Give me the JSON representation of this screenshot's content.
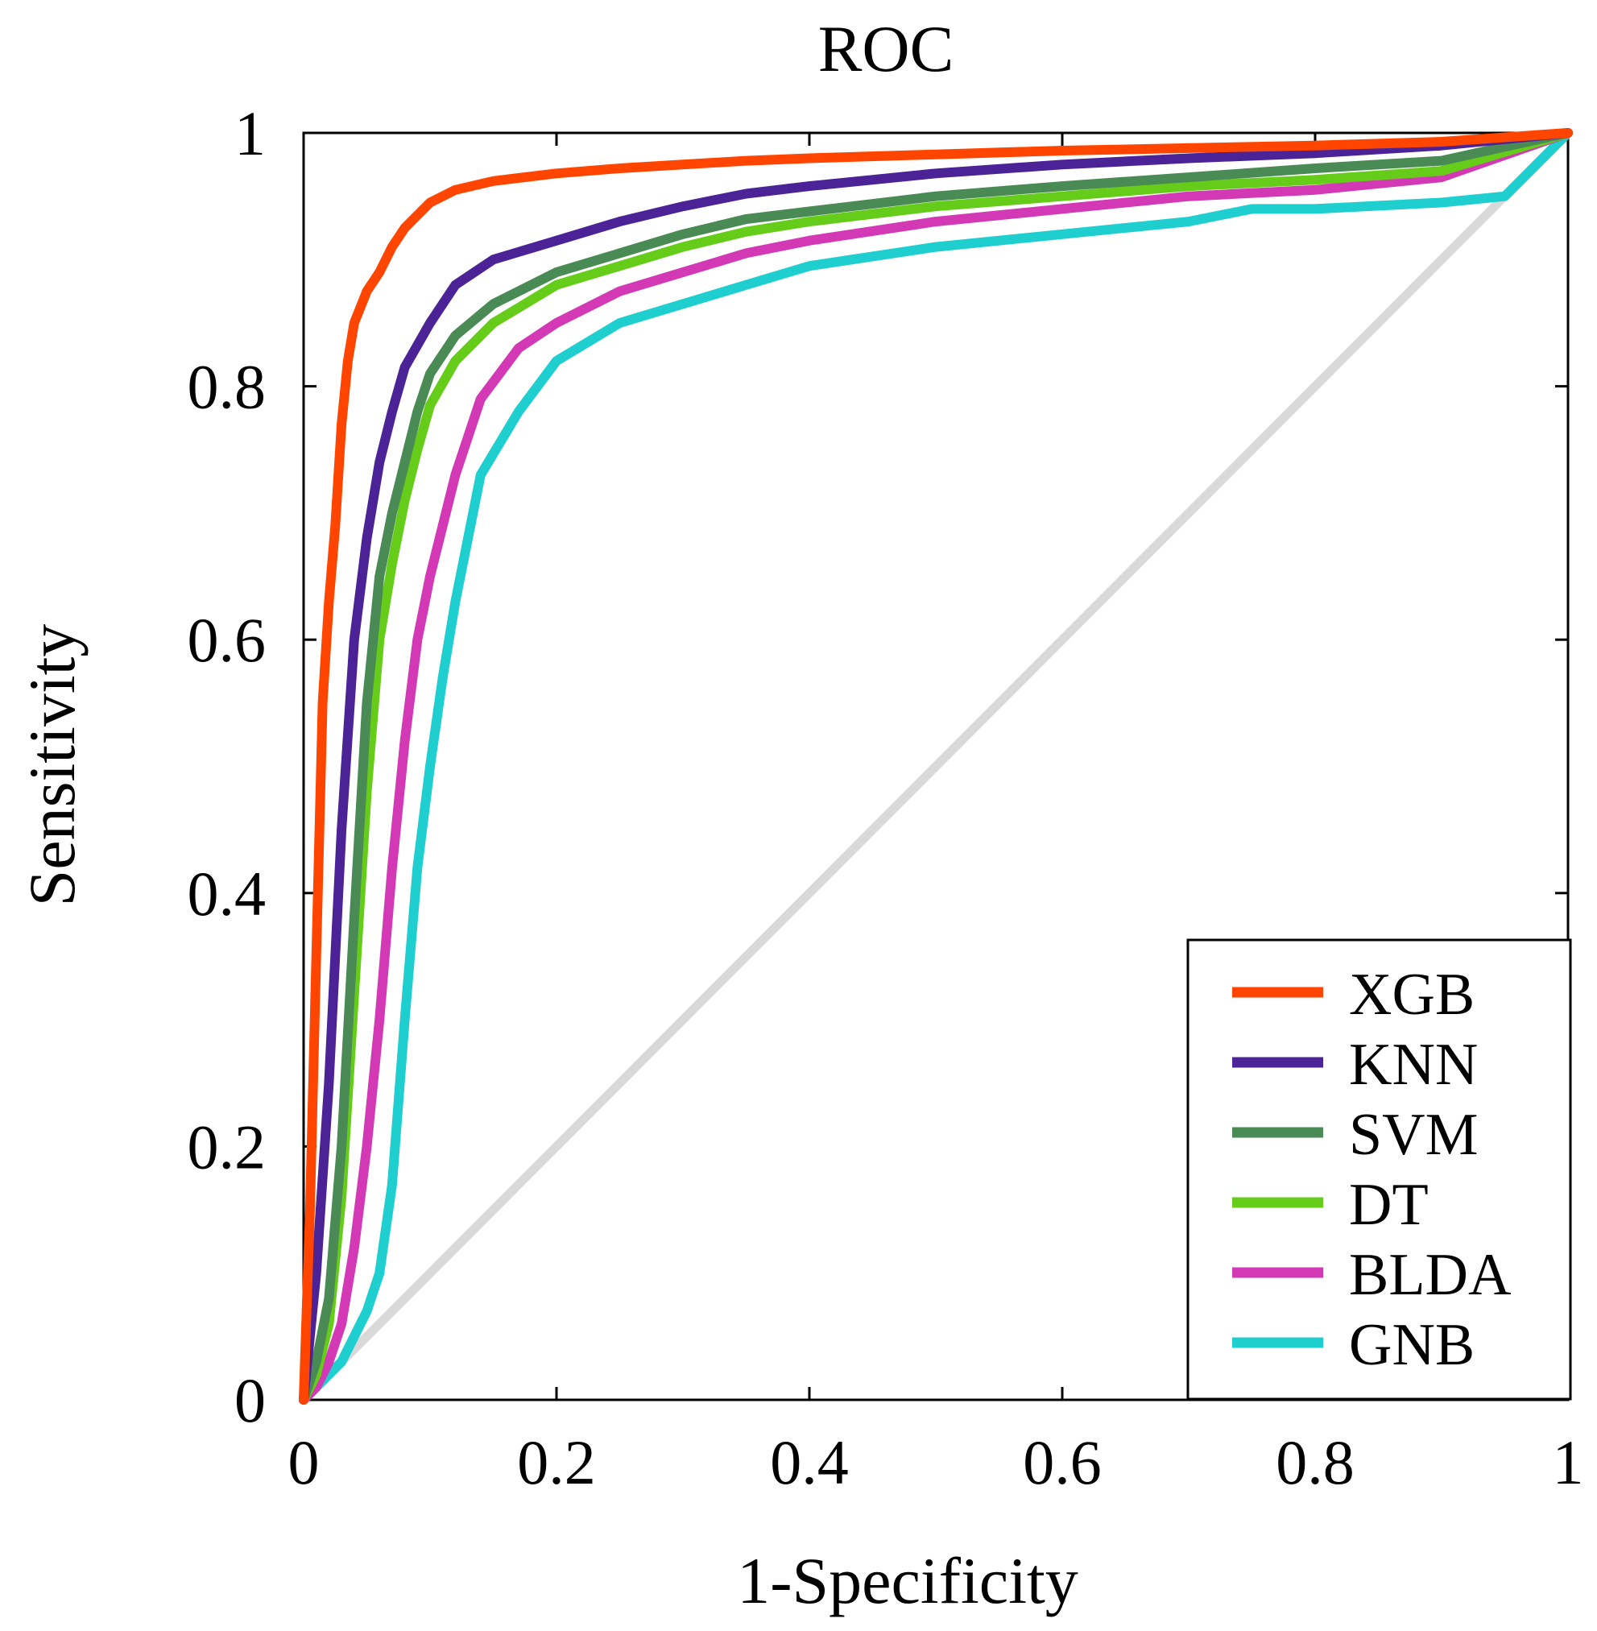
{
  "chart_data": {
    "type": "line",
    "title": "ROC",
    "xlabel": "1-Specificity",
    "ylabel": "Sensitivity",
    "xlim": [
      0,
      1
    ],
    "ylim": [
      0,
      1
    ],
    "xticks": [
      0,
      0.2,
      0.4,
      0.6,
      0.8,
      1
    ],
    "xtick_labels": [
      "0",
      "0.2",
      "0.4",
      "0.6",
      "0.8",
      "1"
    ],
    "yticks": [
      0,
      0.2,
      0.4,
      0.6,
      0.8,
      1
    ],
    "ytick_labels": [
      "0",
      "0.2",
      "0.4",
      "0.6",
      "0.8",
      "1"
    ],
    "grid": false,
    "legend_position": "bottom-right",
    "reference_line": {
      "x": [
        0,
        1
      ],
      "y": [
        0,
        1
      ],
      "color": "#d9d9d9"
    },
    "series": [
      {
        "name": "XGB",
        "color": "#ff4500",
        "x": [
          0,
          0.005,
          0.01,
          0.015,
          0.02,
          0.025,
          0.03,
          0.035,
          0.04,
          0.05,
          0.06,
          0.07,
          0.08,
          0.09,
          0.1,
          0.12,
          0.15,
          0.2,
          0.25,
          0.3,
          0.35,
          0.4,
          0.5,
          0.6,
          0.7,
          0.8,
          0.9,
          1.0
        ],
        "y": [
          0,
          0.15,
          0.35,
          0.55,
          0.63,
          0.69,
          0.77,
          0.82,
          0.85,
          0.875,
          0.89,
          0.91,
          0.925,
          0.935,
          0.945,
          0.955,
          0.962,
          0.968,
          0.972,
          0.975,
          0.978,
          0.98,
          0.983,
          0.986,
          0.988,
          0.99,
          0.993,
          1.0
        ]
      },
      {
        "name": "KNN",
        "color": "#4b2396",
        "x": [
          0,
          0.01,
          0.02,
          0.03,
          0.04,
          0.05,
          0.06,
          0.07,
          0.08,
          0.1,
          0.12,
          0.15,
          0.2,
          0.25,
          0.3,
          0.35,
          0.4,
          0.5,
          0.6,
          0.7,
          0.8,
          0.9,
          1.0
        ],
        "y": [
          0,
          0.1,
          0.25,
          0.45,
          0.6,
          0.68,
          0.74,
          0.78,
          0.815,
          0.85,
          0.88,
          0.9,
          0.915,
          0.93,
          0.942,
          0.952,
          0.958,
          0.968,
          0.975,
          0.98,
          0.984,
          0.99,
          1.0
        ]
      },
      {
        "name": "SVM",
        "color": "#4a8a55",
        "x": [
          0,
          0.01,
          0.02,
          0.03,
          0.04,
          0.05,
          0.06,
          0.07,
          0.08,
          0.09,
          0.1,
          0.12,
          0.15,
          0.2,
          0.25,
          0.3,
          0.35,
          0.4,
          0.5,
          0.6,
          0.7,
          0.8,
          0.9,
          1.0
        ],
        "y": [
          0,
          0.03,
          0.08,
          0.2,
          0.38,
          0.55,
          0.65,
          0.7,
          0.74,
          0.78,
          0.81,
          0.84,
          0.865,
          0.89,
          0.905,
          0.92,
          0.932,
          0.938,
          0.95,
          0.958,
          0.965,
          0.972,
          0.978,
          1.0
        ]
      },
      {
        "name": "DT",
        "color": "#66cc1a",
        "x": [
          0,
          0.01,
          0.02,
          0.03,
          0.04,
          0.05,
          0.06,
          0.07,
          0.08,
          0.09,
          0.1,
          0.12,
          0.15,
          0.2,
          0.25,
          0.3,
          0.35,
          0.4,
          0.5,
          0.6,
          0.7,
          0.8,
          0.9,
          1.0
        ],
        "y": [
          0,
          0.02,
          0.06,
          0.16,
          0.32,
          0.48,
          0.6,
          0.66,
          0.71,
          0.75,
          0.785,
          0.82,
          0.85,
          0.88,
          0.895,
          0.91,
          0.922,
          0.93,
          0.942,
          0.95,
          0.958,
          0.963,
          0.97,
          1.0
        ]
      },
      {
        "name": "BLDA",
        "color": "#d339b5",
        "x": [
          0,
          0.01,
          0.02,
          0.03,
          0.04,
          0.05,
          0.06,
          0.07,
          0.08,
          0.09,
          0.1,
          0.12,
          0.14,
          0.17,
          0.2,
          0.25,
          0.3,
          0.35,
          0.4,
          0.5,
          0.6,
          0.7,
          0.8,
          0.9,
          1.0
        ],
        "y": [
          0,
          0.01,
          0.03,
          0.06,
          0.12,
          0.2,
          0.3,
          0.42,
          0.52,
          0.6,
          0.65,
          0.73,
          0.79,
          0.83,
          0.85,
          0.875,
          0.89,
          0.905,
          0.915,
          0.93,
          0.94,
          0.95,
          0.955,
          0.965,
          1.0
        ]
      },
      {
        "name": "GNB",
        "color": "#1fcfcf",
        "x": [
          0,
          0.01,
          0.02,
          0.03,
          0.04,
          0.05,
          0.06,
          0.07,
          0.08,
          0.09,
          0.1,
          0.11,
          0.12,
          0.14,
          0.17,
          0.2,
          0.25,
          0.3,
          0.35,
          0.4,
          0.5,
          0.6,
          0.7,
          0.75,
          0.8,
          0.9,
          0.95,
          1.0
        ],
        "y": [
          0,
          0.01,
          0.02,
          0.03,
          0.05,
          0.07,
          0.1,
          0.17,
          0.3,
          0.42,
          0.5,
          0.57,
          0.63,
          0.73,
          0.78,
          0.82,
          0.85,
          0.865,
          0.88,
          0.895,
          0.91,
          0.92,
          0.93,
          0.94,
          0.94,
          0.945,
          0.95,
          1.0
        ]
      }
    ]
  }
}
